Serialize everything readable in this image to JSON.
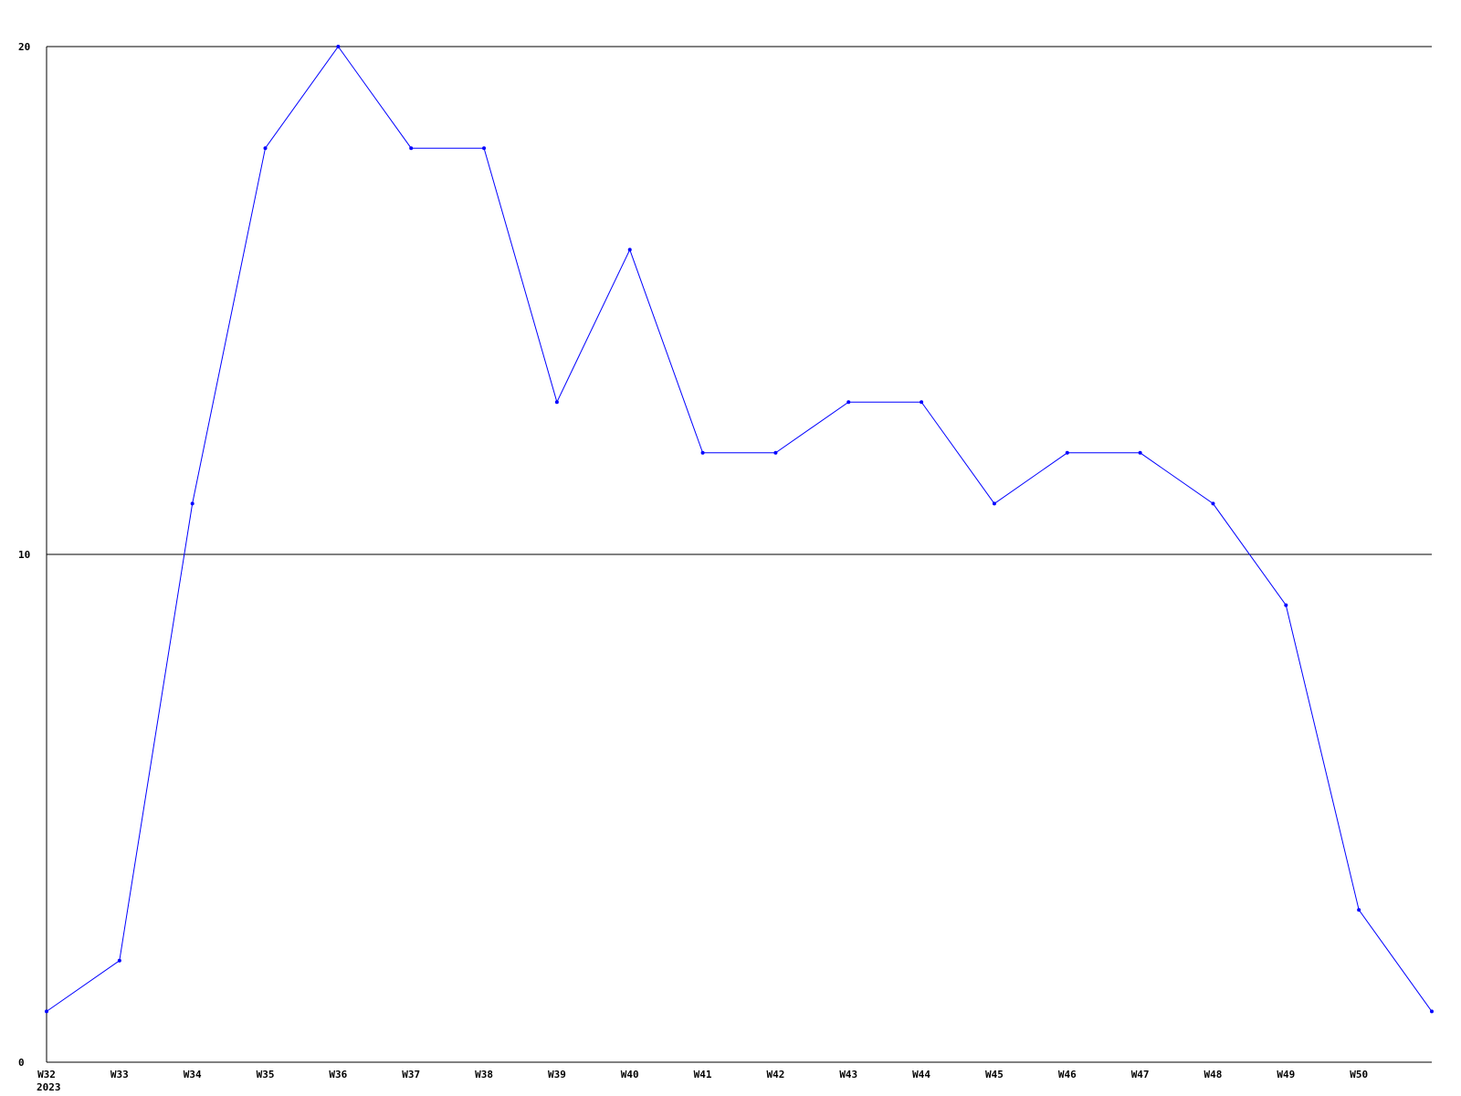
{
  "chart_data": {
    "type": "line",
    "categories": [
      "W32",
      "W33",
      "W34",
      "W35",
      "W36",
      "W37",
      "W38",
      "W39",
      "W40",
      "W41",
      "W42",
      "W43",
      "W44",
      "W45",
      "W46",
      "W47",
      "W48",
      "W49",
      "W50",
      ""
    ],
    "year_label": "2023",
    "series": [
      {
        "values": [
          1,
          2,
          11,
          18,
          20,
          18,
          18,
          13,
          16,
          12,
          12,
          13,
          13,
          11,
          12,
          12,
          11,
          9,
          3,
          1
        ],
        "color": "#0000ff"
      }
    ],
    "ylim": [
      0,
      20
    ],
    "yticks": [
      "0",
      "10",
      "20"
    ],
    "grid": true,
    "title": "",
    "xlabel": "",
    "ylabel": ""
  }
}
